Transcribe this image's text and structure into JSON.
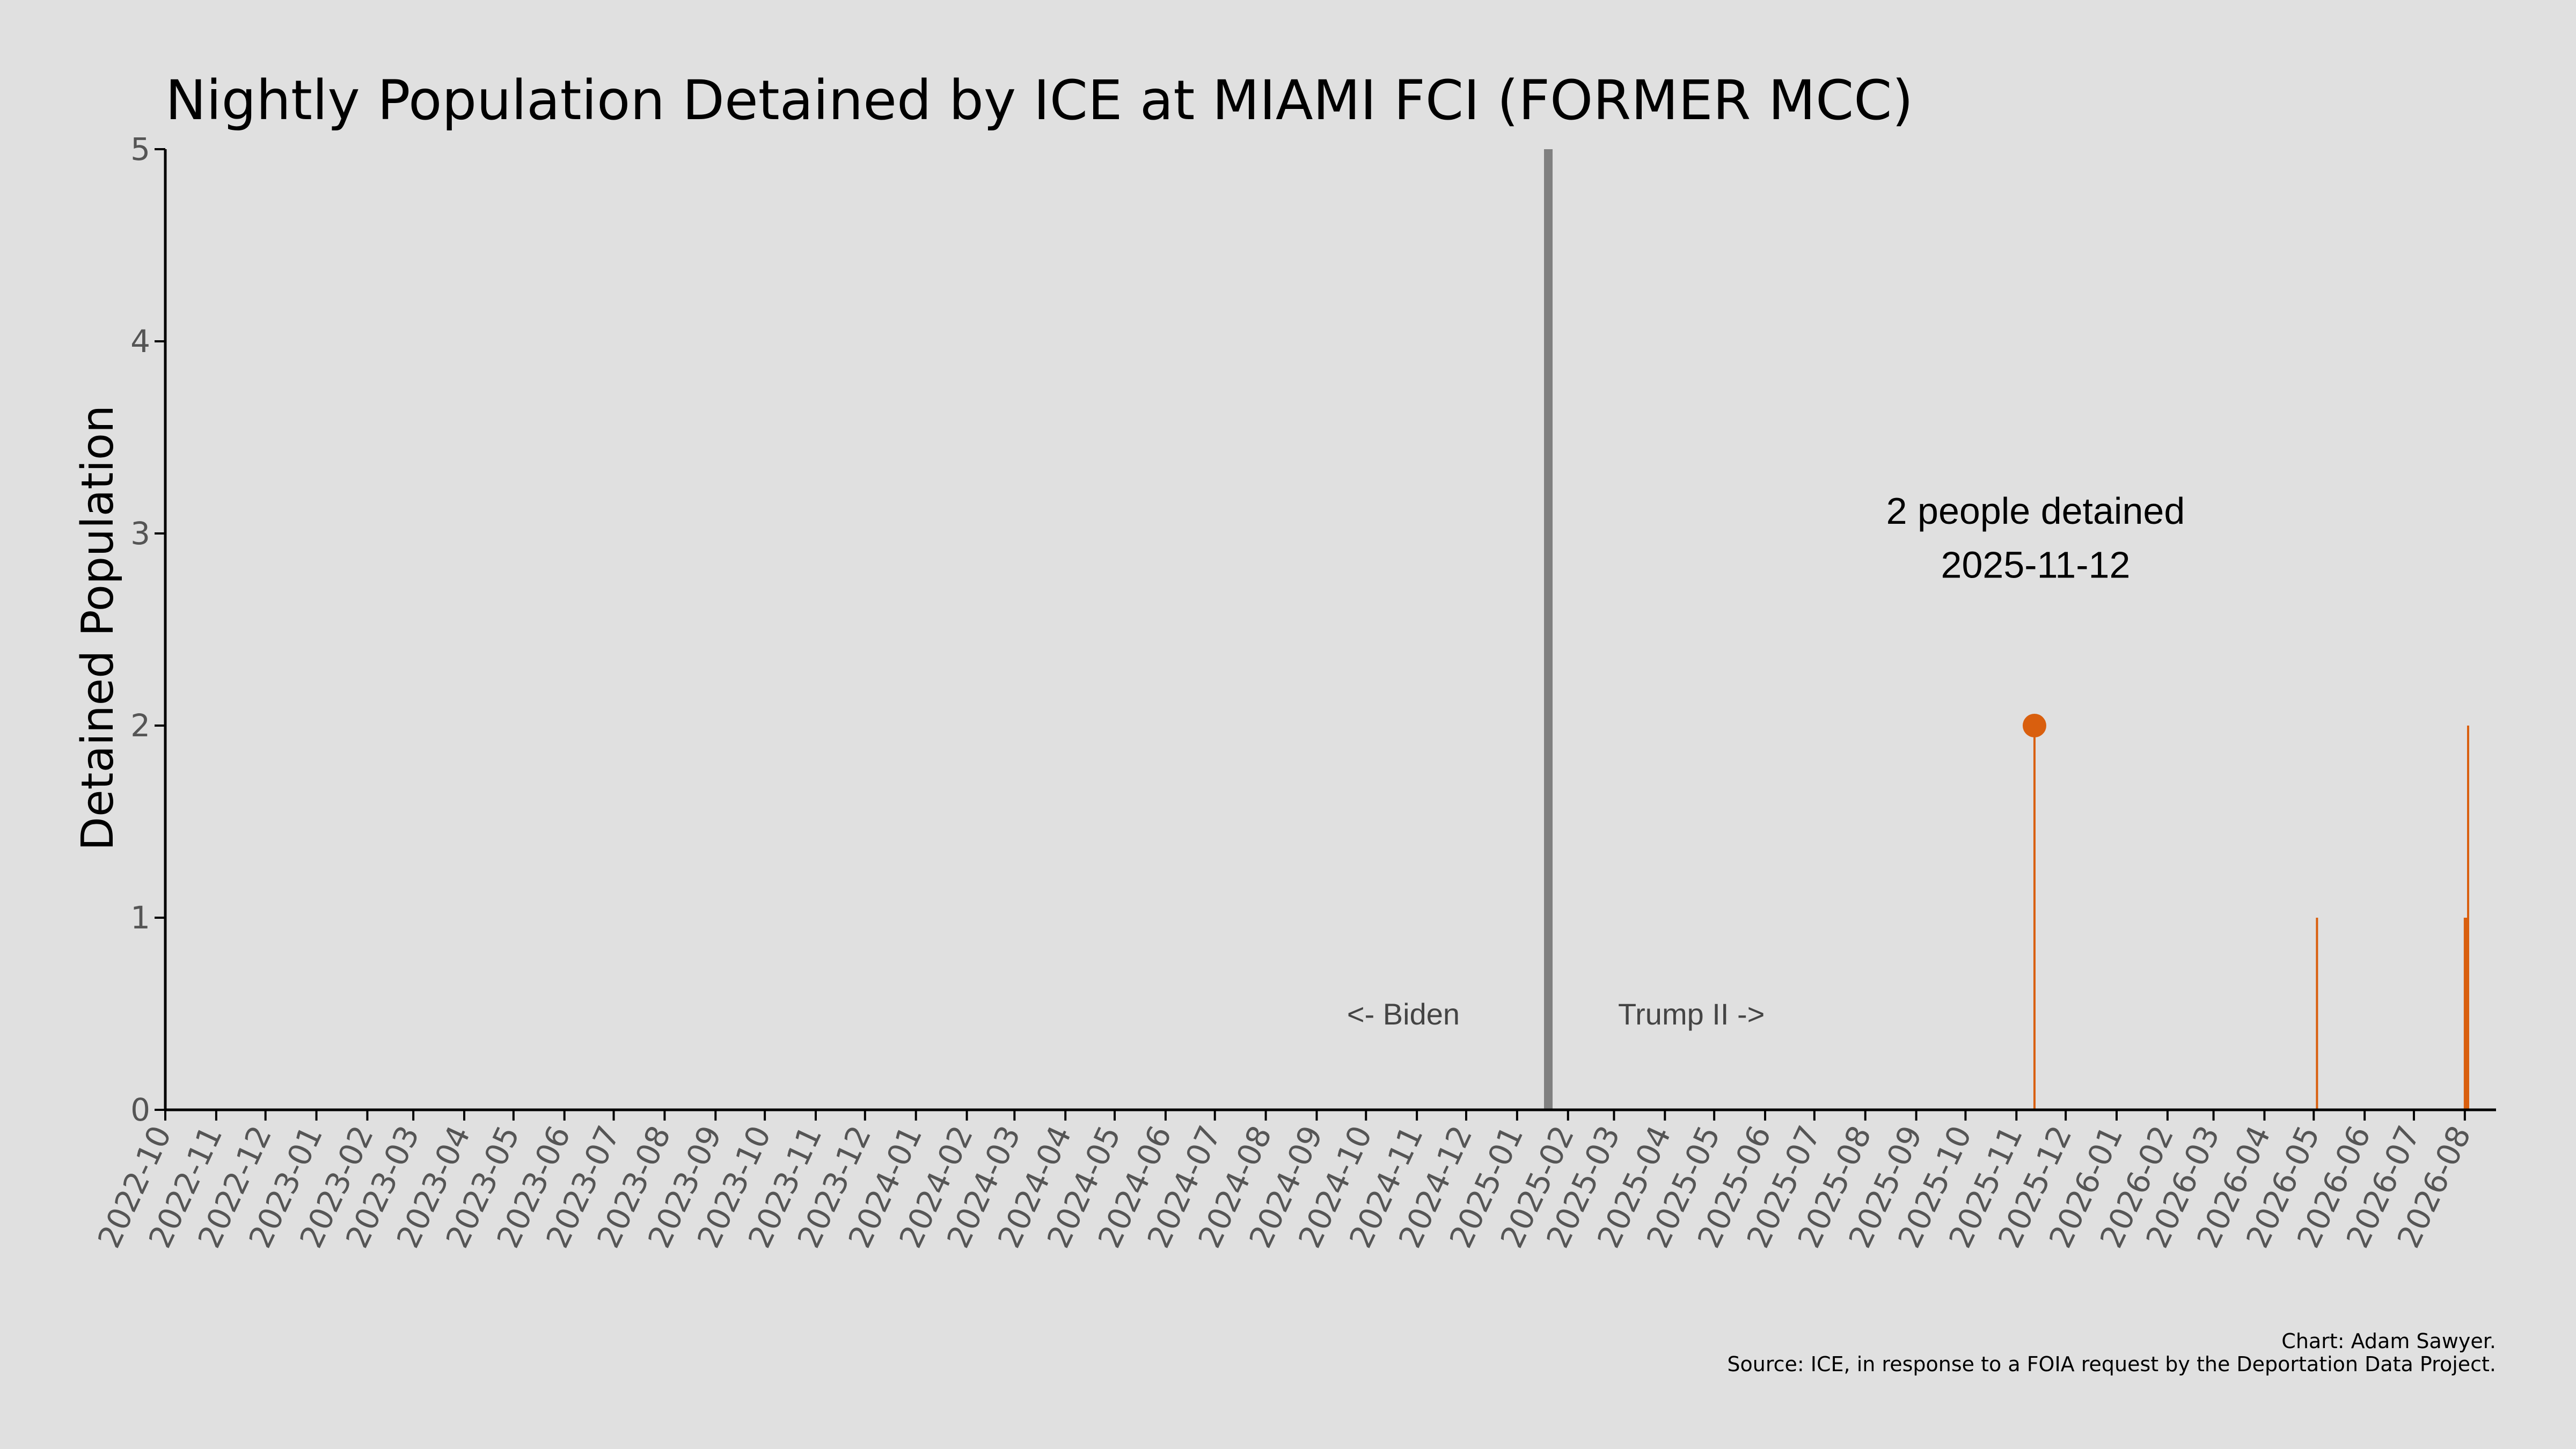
{
  "chart_data": {
    "type": "bar",
    "title": "Nightly Population Detained by ICE at MIAMI FCI (FORMER MCC)",
    "xlabel": "",
    "ylabel": "Detained Population",
    "ylim": [
      0,
      5
    ],
    "yticks": [
      "0",
      "1",
      "2",
      "3",
      "4",
      "5"
    ],
    "x_range": [
      "2022-10-01",
      "2026-08-20"
    ],
    "x_ticks": [
      "2022-10",
      "2022-11",
      "2022-12",
      "2023-01",
      "2023-02",
      "2023-03",
      "2023-04",
      "2023-05",
      "2023-06",
      "2023-07",
      "2023-08",
      "2023-09",
      "2023-10",
      "2023-11",
      "2023-12",
      "2024-01",
      "2024-02",
      "2024-03",
      "2024-04",
      "2024-05",
      "2024-06",
      "2024-07",
      "2024-08",
      "2024-09",
      "2024-10",
      "2024-11",
      "2024-12",
      "2025-01",
      "2025-02",
      "2025-03",
      "2025-04",
      "2025-05",
      "2025-06",
      "2025-07",
      "2025-08",
      "2025-09",
      "2025-10",
      "2025-11",
      "2025-12",
      "2026-01",
      "2026-02",
      "2026-03",
      "2026-04",
      "2026-05",
      "2026-06",
      "2026-07",
      "2026-08"
    ],
    "series": [
      {
        "color": "#d95f0e",
        "points": [
          {
            "date": "2025-11-12",
            "value": 2
          },
          {
            "date": "2026-05-03",
            "value": 1
          },
          {
            "date": "2026-08-01",
            "value": 1
          },
          {
            "date": "2026-08-02",
            "value": 1
          },
          {
            "date": "2026-08-03",
            "value": 2
          }
        ]
      }
    ],
    "divider": {
      "date": "2025-01-20",
      "color": "#808080"
    },
    "era_labels": {
      "left": "<- Biden",
      "right": "Trump II ->"
    },
    "highlight": {
      "date": "2025-11-12",
      "value": 2,
      "text_line1": "2 people detained",
      "text_line2": "2025-11-12"
    },
    "grid": false,
    "legend": "none"
  },
  "footer": {
    "credit": "Chart: Adam Sawyer.",
    "source": "Source: ICE, in response to a FOIA request by the Deportation Data Project."
  },
  "colors": {
    "background": "#e0e0e0",
    "series": "#d95f0e",
    "divider": "#808080",
    "axis": "#000000"
  }
}
